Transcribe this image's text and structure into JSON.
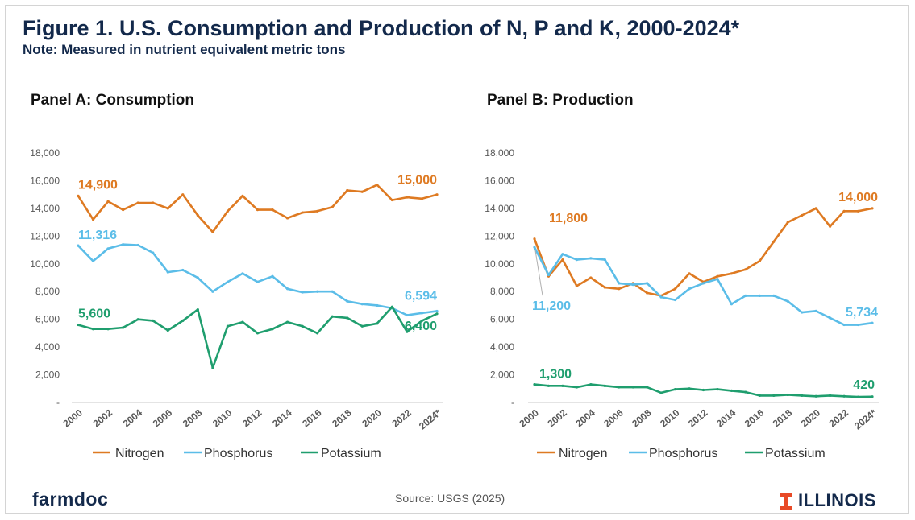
{
  "title": "Figure 1. U.S. Consumption and Production of N, P and K, 2000-2024*",
  "note": "Note: Measured in nutrient equivalent metric tons",
  "source": "Source: USGS (2025)",
  "logo_left": "farmdoc",
  "logo_right": "ILLINOIS",
  "colors": {
    "nitrogen": "#de7a22",
    "phosphorus": "#5bbde8",
    "potassium": "#1f9e6e",
    "title": "#13294b",
    "accent": "#e84a27"
  },
  "chart_data": [
    {
      "id": "panelA",
      "type": "line",
      "title": "Panel A: Consumption",
      "xlabel": "",
      "ylabel": "",
      "x": [
        2000,
        2001,
        2002,
        2003,
        2004,
        2005,
        2006,
        2007,
        2008,
        2009,
        2010,
        2011,
        2012,
        2013,
        2014,
        2015,
        2016,
        2017,
        2018,
        2019,
        2020,
        2021,
        2022,
        2023,
        2024
      ],
      "x_tick_labels": [
        "2000",
        "2002",
        "2004",
        "2006",
        "2008",
        "2010",
        "2012",
        "2014",
        "2016",
        "2018",
        "2020",
        "2022",
        "2024*"
      ],
      "y_tick_labels": [
        "-",
        "2,000",
        "4,000",
        "6,000",
        "8,000",
        "10,000",
        "12,000",
        "14,000",
        "16,000",
        "18,000"
      ],
      "ylim": [
        0,
        18000
      ],
      "legend": "bottom",
      "grid": false,
      "series": [
        {
          "name": "Nitrogen",
          "key": "nitrogen",
          "values": [
            14900,
            13200,
            14500,
            13900,
            14400,
            14400,
            14000,
            15000,
            13500,
            12300,
            13800,
            14900,
            13900,
            13900,
            13300,
            13700,
            13800,
            14100,
            15300,
            15200,
            15700,
            14600,
            14800,
            14700,
            15000
          ],
          "labels": [
            {
              "i": 0,
              "text": "14,900"
            },
            {
              "i": 24,
              "text": "15,000"
            }
          ]
        },
        {
          "name": "Phosphorus",
          "key": "phosphorus",
          "values": [
            11316,
            10200,
            11100,
            11400,
            11350,
            10800,
            9400,
            9550,
            9000,
            8000,
            8700,
            9300,
            8700,
            9100,
            8200,
            7950,
            8000,
            8000,
            7300,
            7100,
            7000,
            6800,
            6300,
            6450,
            6594
          ],
          "labels": [
            {
              "i": 0,
              "text": "11,316"
            },
            {
              "i": 24,
              "text": "6,594"
            }
          ]
        },
        {
          "name": "Potassium",
          "key": "potassium",
          "values": [
            5600,
            5300,
            5300,
            5400,
            6000,
            5900,
            5200,
            5900,
            6700,
            2500,
            5500,
            5800,
            5000,
            5300,
            5800,
            5500,
            5000,
            6200,
            6100,
            5500,
            5700,
            6900,
            5100,
            5900,
            6400
          ],
          "labels": [
            {
              "i": 0,
              "text": "5,600"
            },
            {
              "i": 24,
              "text": "6,400"
            }
          ]
        }
      ]
    },
    {
      "id": "panelB",
      "type": "line",
      "title": "Panel B: Production",
      "xlabel": "",
      "ylabel": "",
      "x": [
        2000,
        2001,
        2002,
        2003,
        2004,
        2005,
        2006,
        2007,
        2008,
        2009,
        2010,
        2011,
        2012,
        2013,
        2014,
        2015,
        2016,
        2017,
        2018,
        2019,
        2020,
        2021,
        2022,
        2023,
        2024
      ],
      "x_tick_labels": [
        "2000",
        "2002",
        "2004",
        "2006",
        "2008",
        "2010",
        "2012",
        "2014",
        "2016",
        "2018",
        "2020",
        "2022",
        "2024*"
      ],
      "y_tick_labels": [
        "-",
        "2,000",
        "4,000",
        "6,000",
        "8,000",
        "10,000",
        "12,000",
        "14,000",
        "16,000",
        "18,000"
      ],
      "ylim": [
        0,
        18000
      ],
      "legend": "bottom",
      "grid": false,
      "series": [
        {
          "name": "Nitrogen",
          "key": "nitrogen",
          "values": [
            11800,
            9100,
            10300,
            8400,
            9000,
            8300,
            8200,
            8600,
            7900,
            7700,
            8200,
            9300,
            8700,
            9100,
            9300,
            9600,
            10200,
            11600,
            13000,
            13500,
            14000,
            12700,
            13800,
            13800,
            14000
          ],
          "labels": [
            {
              "i": 0,
              "text": "11,800"
            },
            {
              "i": 24,
              "text": "14,000"
            }
          ]
        },
        {
          "name": "Phosphorus",
          "key": "phosphorus",
          "values": [
            11200,
            9200,
            10700,
            10300,
            10400,
            10300,
            8600,
            8500,
            8600,
            7600,
            7400,
            8200,
            8600,
            8900,
            7100,
            7700,
            7700,
            7700,
            7300,
            6500,
            6600,
            6100,
            5600,
            5600,
            5734
          ],
          "labels": [
            {
              "i": 0,
              "text": "11,200"
            },
            {
              "i": 24,
              "text": "5,734"
            }
          ]
        },
        {
          "name": "Potassium",
          "key": "potassium",
          "values": [
            1300,
            1200,
            1200,
            1100,
            1300,
            1200,
            1100,
            1100,
            1100,
            700,
            950,
            1000,
            900,
            950,
            850,
            750,
            500,
            500,
            550,
            500,
            450,
            500,
            450,
            400,
            420
          ],
          "labels": [
            {
              "i": 0,
              "text": "1,300"
            },
            {
              "i": 24,
              "text": "420"
            }
          ]
        }
      ]
    }
  ]
}
